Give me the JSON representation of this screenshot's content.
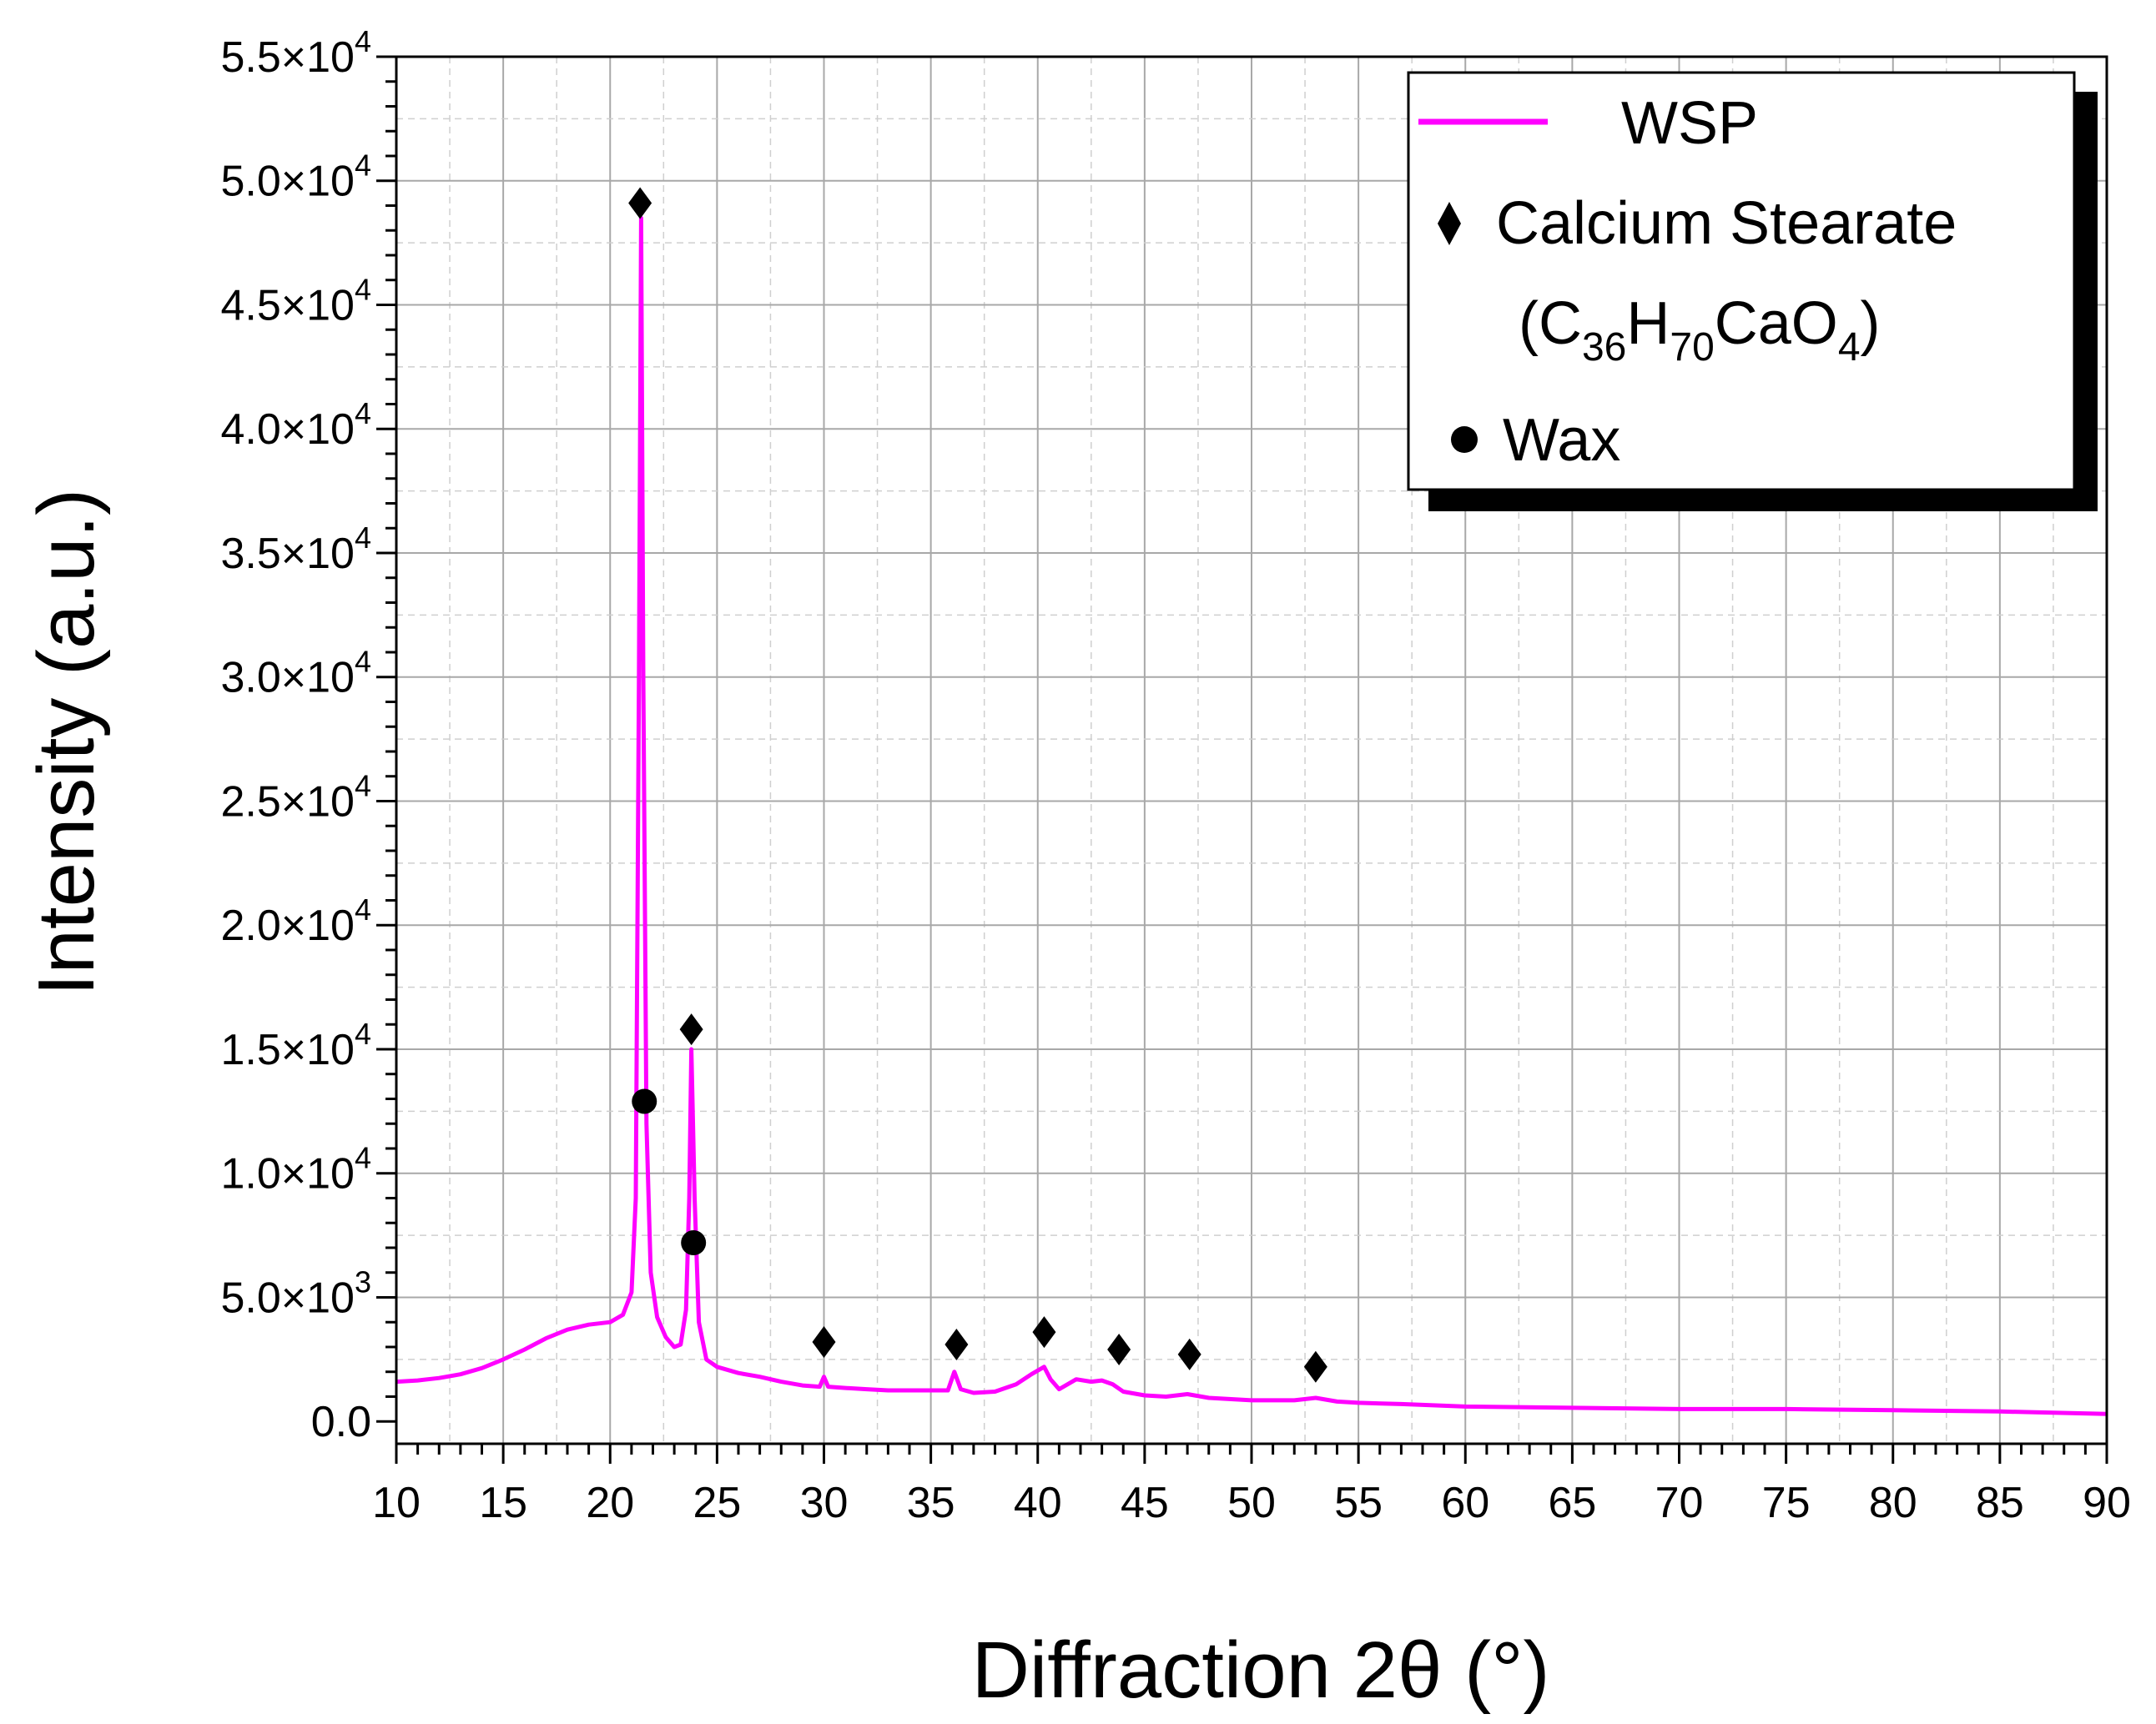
{
  "chart_data": {
    "type": "line",
    "xlabel": "Diffraction 2θ (°)",
    "ylabel": "Intensity (a.u.)",
    "xlim": [
      10,
      90
    ],
    "ylim": [
      -900,
      55000
    ],
    "grid": true,
    "legend_position": "top-right",
    "x_ticks": [
      10,
      15,
      20,
      25,
      30,
      35,
      40,
      45,
      50,
      55,
      60,
      65,
      70,
      75,
      80,
      85,
      90
    ],
    "x_tick_labels": [
      "10",
      "15",
      "20",
      "25",
      "30",
      "35",
      "40",
      "45",
      "50",
      "55",
      "60",
      "65",
      "70",
      "75",
      "80",
      "85",
      "90"
    ],
    "y_ticks": [
      0,
      5000,
      10000,
      15000,
      20000,
      25000,
      30000,
      35000,
      40000,
      45000,
      50000,
      55000
    ],
    "y_tick_labels": [
      {
        "mant": "0.0",
        "exp": ""
      },
      {
        "mant": "5.0×10",
        "exp": "3"
      },
      {
        "mant": "1.0×10",
        "exp": "4"
      },
      {
        "mant": "1.5×10",
        "exp": "4"
      },
      {
        "mant": "2.0×10",
        "exp": "4"
      },
      {
        "mant": "2.5×10",
        "exp": "4"
      },
      {
        "mant": "3.0×10",
        "exp": "4"
      },
      {
        "mant": "3.5×10",
        "exp": "4"
      },
      {
        "mant": "4.0×10",
        "exp": "4"
      },
      {
        "mant": "4.5×10",
        "exp": "4"
      },
      {
        "mant": "5.0×10",
        "exp": "4"
      },
      {
        "mant": "5.5×10",
        "exp": "4"
      }
    ],
    "series": [
      {
        "name": "WSP",
        "color": "#ff00ff",
        "points": [
          [
            10,
            1600
          ],
          [
            11,
            1650
          ],
          [
            12,
            1750
          ],
          [
            13,
            1900
          ],
          [
            14,
            2150
          ],
          [
            15,
            2500
          ],
          [
            16,
            2900
          ],
          [
            17,
            3350
          ],
          [
            18,
            3700
          ],
          [
            19,
            3900
          ],
          [
            20,
            4000
          ],
          [
            20.6,
            4300
          ],
          [
            21.0,
            5200
          ],
          [
            21.2,
            9000
          ],
          [
            21.35,
            30000
          ],
          [
            21.45,
            48500
          ],
          [
            21.55,
            30000
          ],
          [
            21.7,
            12000
          ],
          [
            21.9,
            6000
          ],
          [
            22.2,
            4200
          ],
          [
            22.6,
            3400
          ],
          [
            23.0,
            3000
          ],
          [
            23.3,
            3100
          ],
          [
            23.55,
            4500
          ],
          [
            23.7,
            9000
          ],
          [
            23.8,
            15000
          ],
          [
            23.95,
            9000
          ],
          [
            24.15,
            4000
          ],
          [
            24.5,
            2500
          ],
          [
            25,
            2200
          ],
          [
            26,
            1950
          ],
          [
            27,
            1800
          ],
          [
            28,
            1600
          ],
          [
            29,
            1450
          ],
          [
            29.8,
            1400
          ],
          [
            30.0,
            1800
          ],
          [
            30.2,
            1400
          ],
          [
            31,
            1350
          ],
          [
            32,
            1300
          ],
          [
            33,
            1250
          ],
          [
            34,
            1250
          ],
          [
            35,
            1250
          ],
          [
            35.8,
            1250
          ],
          [
            36.1,
            2000
          ],
          [
            36.4,
            1300
          ],
          [
            37,
            1150
          ],
          [
            38,
            1200
          ],
          [
            39,
            1500
          ],
          [
            39.7,
            1900
          ],
          [
            40.3,
            2200
          ],
          [
            40.6,
            1700
          ],
          [
            41,
            1300
          ],
          [
            41.8,
            1700
          ],
          [
            42.5,
            1600
          ],
          [
            43.0,
            1650
          ],
          [
            43.5,
            1500
          ],
          [
            44,
            1200
          ],
          [
            45,
            1050
          ],
          [
            46,
            1000
          ],
          [
            47,
            1100
          ],
          [
            48,
            950
          ],
          [
            50,
            850
          ],
          [
            52,
            850
          ],
          [
            53,
            950
          ],
          [
            54,
            800
          ],
          [
            55,
            750
          ],
          [
            57,
            700
          ],
          [
            60,
            600
          ],
          [
            65,
            550
          ],
          [
            70,
            500
          ],
          [
            75,
            500
          ],
          [
            80,
            450
          ],
          [
            85,
            400
          ],
          [
            90,
            300
          ]
        ]
      }
    ],
    "calcium_stearate_markers": [
      {
        "x": 21.4,
        "y": 49100
      },
      {
        "x": 23.8,
        "y": 15800
      },
      {
        "x": 30.0,
        "y": 3200
      },
      {
        "x": 36.2,
        "y": 3100
      },
      {
        "x": 40.3,
        "y": 3600
      },
      {
        "x": 43.8,
        "y": 2900
      },
      {
        "x": 47.1,
        "y": 2700
      },
      {
        "x": 53.0,
        "y": 2200
      }
    ],
    "wax_markers": [
      {
        "x": 21.6,
        "y": 12900
      },
      {
        "x": 23.9,
        "y": 7200
      }
    ],
    "legend": {
      "series_label": "WSP",
      "cs_label": "Calcium Stearate",
      "cs_formula": [
        {
          "t": "(C",
          "sub": false
        },
        {
          "t": "36",
          "sub": true
        },
        {
          "t": "H",
          "sub": false
        },
        {
          "t": "70",
          "sub": true
        },
        {
          "t": "CaO",
          "sub": false
        },
        {
          "t": "4",
          "sub": true
        },
        {
          "t": ")",
          "sub": false
        }
      ],
      "wax_label": "Wax"
    }
  }
}
